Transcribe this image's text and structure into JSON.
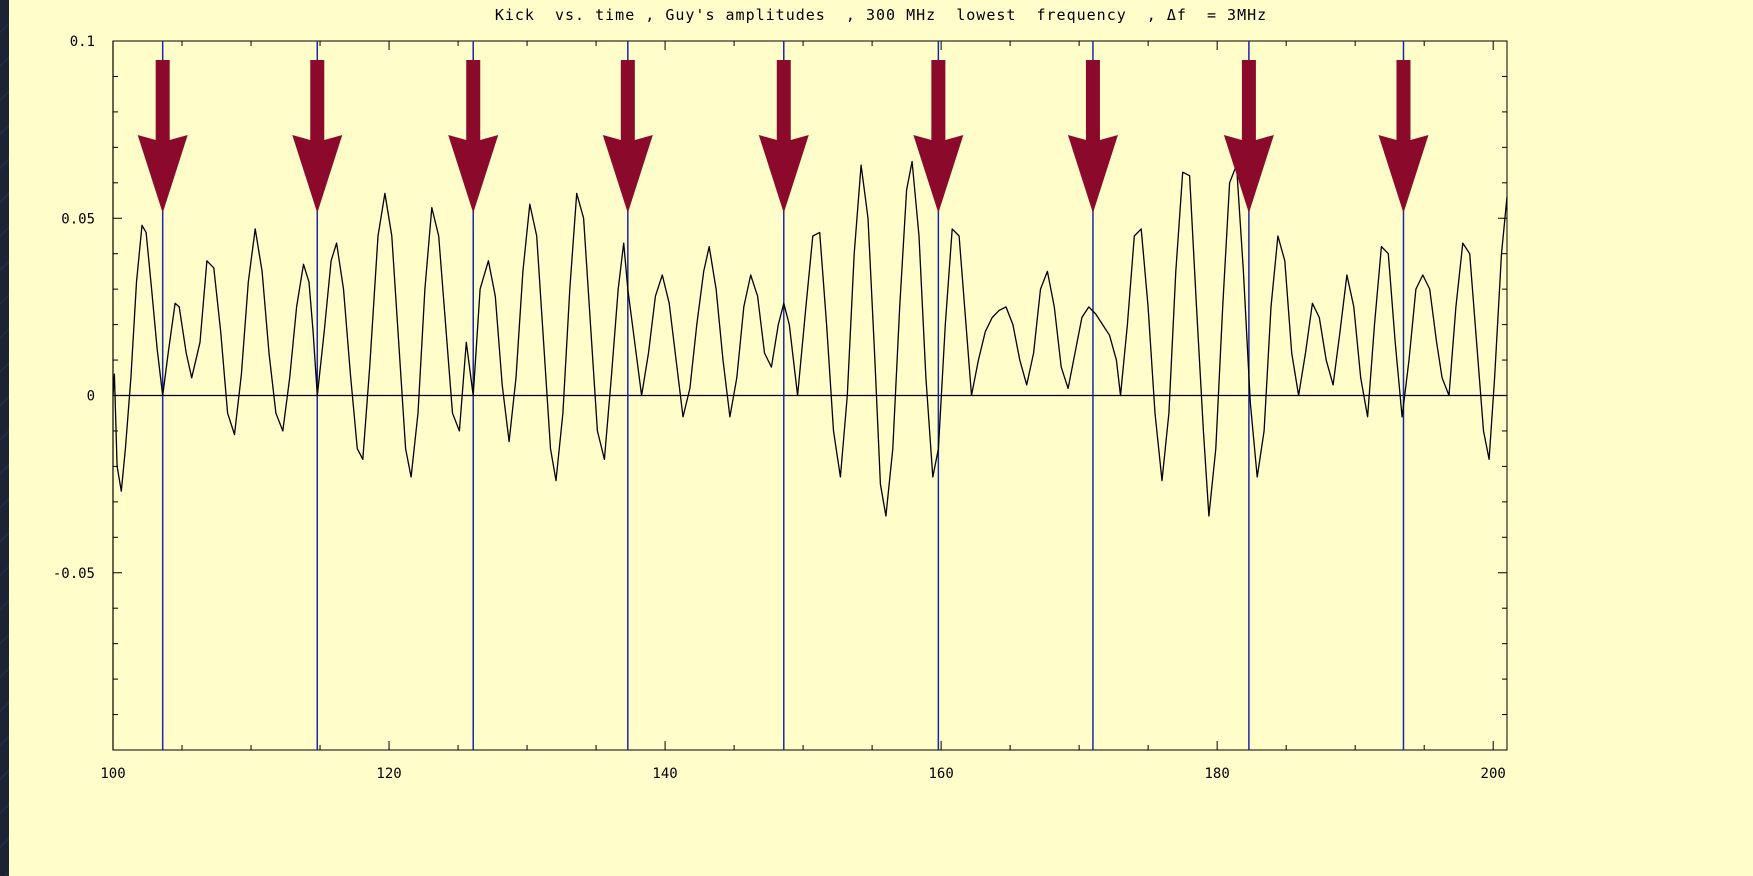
{
  "chart_data": {
    "type": "line",
    "title": "Kick  vs. time , Guy's amplitudes  , 300 MHz  lowest  frequency  , Δf  = 3MHz",
    "xlabel": "",
    "ylabel": "",
    "xlim": [
      100,
      201
    ],
    "ylim": [
      -0.1,
      0.1
    ],
    "x_ticks": [
      100,
      120,
      140,
      160,
      180,
      200
    ],
    "x_tick_labels": [
      "100",
      "120",
      "140",
      "160",
      "180",
      "200"
    ],
    "y_ticks": [
      0.1,
      0.05,
      0,
      -0.05
    ],
    "y_tick_labels": [
      "0.1",
      "0.05",
      "0",
      "-0.05"
    ],
    "grid": false,
    "vertical_markers_x": [
      103.6,
      114.8,
      126.1,
      137.3,
      148.6,
      159.8,
      171.0,
      182.3,
      193.5
    ],
    "arrow_color": "#8b0a2c",
    "marker_line_color": "#1a27a8",
    "series": [
      {
        "points": [
          [
            100.0,
            0.0
          ],
          [
            100.1,
            0.006
          ],
          [
            100.3,
            -0.02
          ],
          [
            100.6,
            -0.027
          ],
          [
            100.9,
            -0.015
          ],
          [
            101.3,
            0.005
          ],
          [
            101.7,
            0.032
          ],
          [
            102.1,
            0.048
          ],
          [
            102.4,
            0.046
          ],
          [
            102.8,
            0.03
          ],
          [
            103.2,
            0.013
          ],
          [
            103.6,
            0.0
          ],
          [
            104.0,
            0.012
          ],
          [
            104.5,
            0.026
          ],
          [
            104.8,
            0.025
          ],
          [
            105.3,
            0.012
          ],
          [
            105.7,
            0.005
          ],
          [
            106.3,
            0.015
          ],
          [
            106.8,
            0.038
          ],
          [
            107.3,
            0.036
          ],
          [
            107.8,
            0.018
          ],
          [
            108.3,
            -0.005
          ],
          [
            108.8,
            -0.011
          ],
          [
            109.3,
            0.006
          ],
          [
            109.8,
            0.032
          ],
          [
            110.3,
            0.047
          ],
          [
            110.8,
            0.035
          ],
          [
            111.3,
            0.012
          ],
          [
            111.8,
            -0.005
          ],
          [
            112.3,
            -0.01
          ],
          [
            112.8,
            0.005
          ],
          [
            113.3,
            0.025
          ],
          [
            113.8,
            0.037
          ],
          [
            114.2,
            0.032
          ],
          [
            114.5,
            0.018
          ],
          [
            114.8,
            0.0
          ],
          [
            115.3,
            0.018
          ],
          [
            115.8,
            0.038
          ],
          [
            116.2,
            0.043
          ],
          [
            116.7,
            0.03
          ],
          [
            117.2,
            0.006
          ],
          [
            117.7,
            -0.015
          ],
          [
            118.1,
            -0.018
          ],
          [
            118.6,
            0.008
          ],
          [
            119.2,
            0.045
          ],
          [
            119.7,
            0.057
          ],
          [
            120.2,
            0.045
          ],
          [
            120.7,
            0.015
          ],
          [
            121.2,
            -0.015
          ],
          [
            121.6,
            -0.023
          ],
          [
            122.1,
            -0.005
          ],
          [
            122.6,
            0.03
          ],
          [
            123.1,
            0.053
          ],
          [
            123.6,
            0.045
          ],
          [
            124.1,
            0.02
          ],
          [
            124.6,
            -0.005
          ],
          [
            125.1,
            -0.01
          ],
          [
            125.6,
            0.015
          ],
          [
            126.1,
            0.0
          ],
          [
            126.6,
            0.03
          ],
          [
            127.2,
            0.038
          ],
          [
            127.7,
            0.028
          ],
          [
            128.2,
            0.003
          ],
          [
            128.7,
            -0.013
          ],
          [
            129.2,
            0.005
          ],
          [
            129.7,
            0.035
          ],
          [
            130.2,
            0.054
          ],
          [
            130.7,
            0.045
          ],
          [
            131.2,
            0.015
          ],
          [
            131.7,
            -0.015
          ],
          [
            132.1,
            -0.024
          ],
          [
            132.6,
            -0.005
          ],
          [
            133.1,
            0.03
          ],
          [
            133.6,
            0.057
          ],
          [
            134.1,
            0.05
          ],
          [
            134.6,
            0.02
          ],
          [
            135.1,
            -0.01
          ],
          [
            135.6,
            -0.018
          ],
          [
            136.1,
            0.005
          ],
          [
            136.6,
            0.03
          ],
          [
            137.0,
            0.043
          ],
          [
            137.3,
            0.03
          ],
          [
            137.8,
            0.015
          ],
          [
            138.3,
            0.0
          ],
          [
            138.8,
            0.012
          ],
          [
            139.3,
            0.028
          ],
          [
            139.8,
            0.034
          ],
          [
            140.3,
            0.026
          ],
          [
            140.8,
            0.01
          ],
          [
            141.3,
            -0.006
          ],
          [
            141.8,
            0.002
          ],
          [
            142.3,
            0.02
          ],
          [
            142.8,
            0.035
          ],
          [
            143.2,
            0.042
          ],
          [
            143.7,
            0.03
          ],
          [
            144.2,
            0.01
          ],
          [
            144.7,
            -0.006
          ],
          [
            145.2,
            0.005
          ],
          [
            145.7,
            0.025
          ],
          [
            146.2,
            0.034
          ],
          [
            146.7,
            0.028
          ],
          [
            147.2,
            0.012
          ],
          [
            147.7,
            0.008
          ],
          [
            148.2,
            0.02
          ],
          [
            148.6,
            0.026
          ],
          [
            149.0,
            0.02
          ],
          [
            149.6,
            0.0
          ],
          [
            150.2,
            0.025
          ],
          [
            150.7,
            0.045
          ],
          [
            151.2,
            0.046
          ],
          [
            151.7,
            0.02
          ],
          [
            152.2,
            -0.01
          ],
          [
            152.7,
            -0.023
          ],
          [
            153.2,
            0.0
          ],
          [
            153.7,
            0.04
          ],
          [
            154.2,
            0.065
          ],
          [
            154.7,
            0.05
          ],
          [
            155.2,
            0.01
          ],
          [
            155.6,
            -0.025
          ],
          [
            156.0,
            -0.034
          ],
          [
            156.5,
            -0.015
          ],
          [
            157.0,
            0.025
          ],
          [
            157.5,
            0.058
          ],
          [
            157.9,
            0.066
          ],
          [
            158.4,
            0.045
          ],
          [
            158.9,
            0.005
          ],
          [
            159.4,
            -0.023
          ],
          [
            159.8,
            -0.015
          ],
          [
            160.3,
            0.02
          ],
          [
            160.8,
            0.047
          ],
          [
            161.3,
            0.045
          ],
          [
            161.8,
            0.02
          ],
          [
            162.2,
            0.0
          ],
          [
            162.7,
            0.01
          ],
          [
            163.2,
            0.018
          ],
          [
            163.7,
            0.022
          ],
          [
            164.2,
            0.024
          ],
          [
            164.7,
            0.025
          ],
          [
            165.2,
            0.02
          ],
          [
            165.7,
            0.01
          ],
          [
            166.2,
            0.003
          ],
          [
            166.7,
            0.012
          ],
          [
            167.2,
            0.03
          ],
          [
            167.7,
            0.035
          ],
          [
            168.2,
            0.025
          ],
          [
            168.7,
            0.008
          ],
          [
            169.2,
            0.002
          ],
          [
            169.7,
            0.012
          ],
          [
            170.2,
            0.022
          ],
          [
            170.7,
            0.025
          ],
          [
            171.2,
            0.023
          ],
          [
            171.7,
            0.02
          ],
          [
            172.2,
            0.017
          ],
          [
            172.7,
            0.01
          ],
          [
            173.0,
            0.0
          ],
          [
            173.5,
            0.02
          ],
          [
            174.0,
            0.045
          ],
          [
            174.5,
            0.047
          ],
          [
            175.0,
            0.025
          ],
          [
            175.5,
            -0.005
          ],
          [
            176.0,
            -0.024
          ],
          [
            176.5,
            -0.005
          ],
          [
            177.0,
            0.035
          ],
          [
            177.5,
            0.063
          ],
          [
            178.0,
            0.062
          ],
          [
            178.5,
            0.025
          ],
          [
            179.0,
            -0.01
          ],
          [
            179.4,
            -0.034
          ],
          [
            179.9,
            -0.015
          ],
          [
            180.4,
            0.025
          ],
          [
            180.9,
            0.06
          ],
          [
            181.4,
            0.065
          ],
          [
            181.9,
            0.035
          ],
          [
            182.4,
            -0.002
          ],
          [
            182.9,
            -0.023
          ],
          [
            183.4,
            -0.01
          ],
          [
            183.9,
            0.025
          ],
          [
            184.4,
            0.045
          ],
          [
            184.9,
            0.038
          ],
          [
            185.4,
            0.012
          ],
          [
            185.9,
            0.0
          ],
          [
            186.4,
            0.012
          ],
          [
            186.9,
            0.026
          ],
          [
            187.4,
            0.022
          ],
          [
            187.9,
            0.01
          ],
          [
            188.4,
            0.003
          ],
          [
            188.9,
            0.018
          ],
          [
            189.4,
            0.034
          ],
          [
            189.9,
            0.025
          ],
          [
            190.4,
            0.005
          ],
          [
            190.9,
            -0.006
          ],
          [
            191.4,
            0.02
          ],
          [
            191.9,
            0.042
          ],
          [
            192.4,
            0.04
          ],
          [
            192.9,
            0.015
          ],
          [
            193.4,
            -0.006
          ],
          [
            193.9,
            0.01
          ],
          [
            194.4,
            0.03
          ],
          [
            194.9,
            0.034
          ],
          [
            195.4,
            0.03
          ],
          [
            195.9,
            0.015
          ],
          [
            196.3,
            0.005
          ],
          [
            196.8,
            0.0
          ],
          [
            197.3,
            0.025
          ],
          [
            197.8,
            0.043
          ],
          [
            198.3,
            0.04
          ],
          [
            198.8,
            0.015
          ],
          [
            199.3,
            -0.01
          ],
          [
            199.7,
            -0.018
          ],
          [
            200.1,
            0.005
          ],
          [
            200.6,
            0.04
          ],
          [
            201.0,
            0.056
          ]
        ]
      }
    ]
  }
}
